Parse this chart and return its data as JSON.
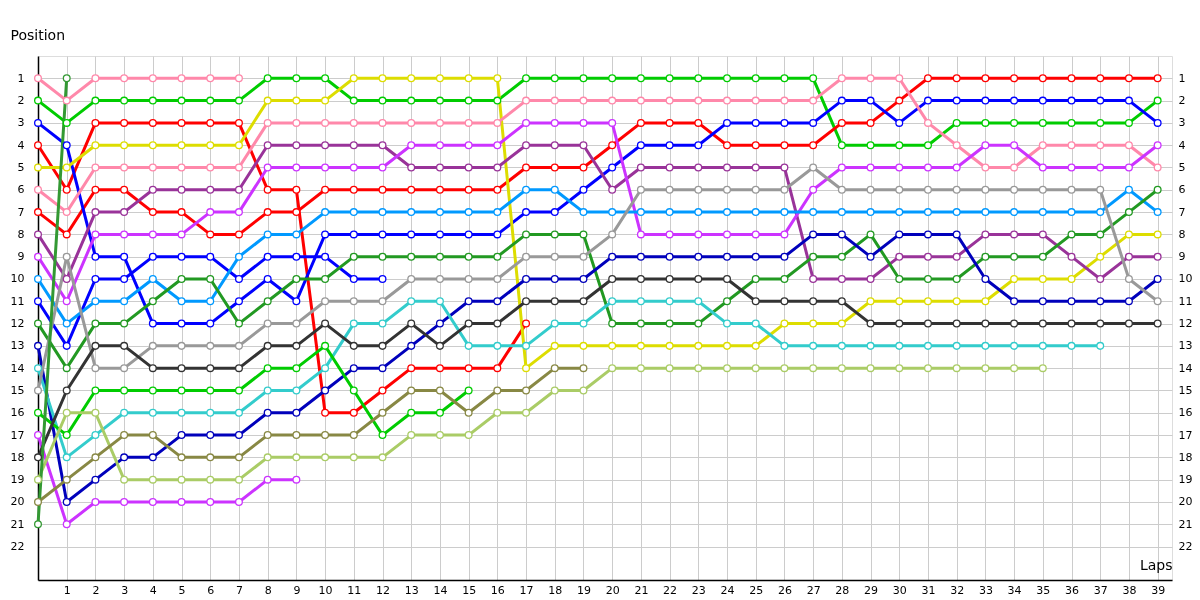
{
  "chart_data": {
    "type": "line",
    "xlabel": "Laps",
    "ylabel": "Position",
    "x": [
      0,
      1,
      2,
      3,
      4,
      5,
      6,
      7,
      8,
      9,
      10,
      11,
      12,
      13,
      14,
      15,
      16,
      17,
      18,
      19,
      20,
      21,
      22,
      23,
      24,
      25,
      26,
      27,
      28,
      29,
      30,
      31,
      32,
      33,
      34,
      35,
      36,
      37,
      38,
      39
    ],
    "xlim": [
      0,
      39.5
    ],
    "xticks": [
      1,
      2,
      3,
      4,
      5,
      6,
      7,
      8,
      9,
      10,
      11,
      12,
      13,
      14,
      15,
      16,
      17,
      18,
      19,
      20,
      21,
      22,
      23,
      24,
      25,
      26,
      27,
      28,
      29,
      30,
      31,
      32,
      33,
      34,
      35,
      36,
      37,
      38,
      39
    ],
    "ylim": [
      23.5,
      0
    ],
    "yticks": [
      1,
      2,
      3,
      4,
      5,
      6,
      7,
      8,
      9,
      10,
      11,
      12,
      13,
      14,
      15,
      16,
      17,
      18,
      19,
      20,
      21,
      22
    ],
    "y2lim": [
      23.5,
      0
    ],
    "y2ticks": [
      1,
      2,
      3,
      4,
      5,
      6,
      7,
      8,
      9,
      10,
      11,
      12,
      13,
      14,
      15,
      16,
      17,
      18,
      19,
      20,
      21,
      22
    ],
    "grid": true,
    "legend": false,
    "marker": "circle",
    "line_style": "solid",
    "series": [
      {
        "color": "#ff88aa",
        "values": [
          1,
          2,
          1,
          1,
          1,
          1,
          1,
          1,
          null,
          null,
          null,
          null,
          null,
          null,
          null,
          null,
          null,
          null,
          null,
          null,
          null,
          null,
          null,
          null,
          null,
          null,
          null,
          null,
          null,
          null,
          null,
          null,
          null,
          null,
          null,
          null,
          null,
          null,
          null,
          null
        ]
      },
      {
        "color": "#00cc00",
        "values": [
          2,
          3,
          2,
          2,
          2,
          2,
          2,
          2,
          1,
          1,
          1,
          2,
          2,
          2,
          2,
          2,
          2,
          1,
          1,
          1,
          1,
          1,
          1,
          1,
          1,
          1,
          1,
          1,
          4,
          4,
          4,
          4,
          3,
          3,
          3,
          3,
          3,
          3,
          3,
          2
        ]
      },
      {
        "color": "#ff0000",
        "values": [
          4,
          6,
          3,
          3,
          3,
          3,
          3,
          3,
          6,
          6,
          16,
          16,
          15,
          14,
          14,
          14,
          14,
          12,
          null,
          null,
          null,
          null,
          null,
          null,
          null,
          null,
          null,
          null,
          null,
          null,
          null,
          null,
          null,
          null,
          null,
          null,
          null,
          null,
          null,
          null
        ]
      },
      {
        "color": "#ff0000",
        "values": [
          7,
          8,
          6,
          6,
          7,
          7,
          8,
          8,
          7,
          7,
          6,
          6,
          6,
          6,
          6,
          6,
          6,
          5,
          5,
          5,
          4,
          3,
          3,
          3,
          4,
          4,
          4,
          4,
          3,
          3,
          2,
          1,
          1,
          1,
          1,
          1,
          1,
          1,
          1,
          1
        ]
      },
      {
        "color": "#0000ff",
        "values": [
          11,
          13,
          10,
          10,
          9,
          9,
          9,
          10,
          9,
          9,
          9,
          10,
          10,
          null,
          null,
          null,
          null,
          null,
          null,
          null,
          null,
          null,
          null,
          null,
          null,
          null,
          null,
          null,
          null,
          null,
          null,
          null,
          null,
          null,
          null,
          null,
          null,
          null,
          null,
          null
        ]
      },
      {
        "color": "#0000ff",
        "values": [
          3,
          4,
          9,
          9,
          12,
          12,
          12,
          11,
          10,
          11,
          8,
          8,
          8,
          8,
          8,
          8,
          8,
          7,
          7,
          6,
          5,
          4,
          4,
          4,
          3,
          3,
          3,
          3,
          2,
          2,
          3,
          2,
          2,
          2,
          2,
          2,
          2,
          2,
          2,
          3
        ]
      },
      {
        "color": "#dddd00",
        "values": [
          5,
          5,
          4,
          4,
          4,
          4,
          4,
          4,
          2,
          2,
          2,
          1,
          1,
          1,
          1,
          1,
          1,
          14,
          13,
          13,
          13,
          13,
          13,
          13,
          13,
          13,
          12,
          12,
          12,
          11,
          11,
          11,
          11,
          11,
          10,
          10,
          10,
          9,
          8,
          8
        ]
      },
      {
        "color": "#ff88aa",
        "values": [
          6,
          7,
          5,
          5,
          5,
          5,
          5,
          5,
          3,
          3,
          3,
          3,
          3,
          3,
          3,
          3,
          3,
          2,
          2,
          2,
          2,
          2,
          2,
          2,
          2,
          2,
          2,
          2,
          1,
          1,
          1,
          3,
          4,
          5,
          5,
          4,
          4,
          4,
          4,
          5
        ]
      },
      {
        "color": "#993399",
        "values": [
          8,
          10,
          7,
          7,
          6,
          6,
          6,
          6,
          4,
          4,
          4,
          4,
          4,
          5,
          5,
          5,
          5,
          4,
          4,
          4,
          6,
          5,
          5,
          5,
          5,
          5,
          5,
          10,
          10,
          10,
          9,
          9,
          9,
          8,
          8,
          8,
          9,
          10,
          9,
          9
        ]
      },
      {
        "color": "#cc33ff",
        "values": [
          9,
          11,
          8,
          8,
          8,
          8,
          7,
          7,
          5,
          5,
          5,
          5,
          5,
          4,
          4,
          4,
          4,
          3,
          3,
          3,
          3,
          8,
          8,
          8,
          8,
          8,
          8,
          6,
          5,
          5,
          5,
          5,
          5,
          4,
          4,
          5,
          5,
          5,
          5,
          4
        ]
      },
      {
        "color": "#0099ff",
        "values": [
          10,
          12,
          11,
          11,
          10,
          11,
          11,
          9,
          8,
          8,
          7,
          7,
          7,
          7,
          7,
          7,
          7,
          6,
          6,
          7,
          7,
          7,
          7,
          7,
          7,
          7,
          7,
          7,
          7,
          7,
          7,
          7,
          7,
          7,
          7,
          7,
          7,
          7,
          6,
          7
        ]
      },
      {
        "color": "#229922",
        "values": [
          12,
          14,
          12,
          12,
          11,
          10,
          10,
          12,
          11,
          10,
          10,
          9,
          9,
          9,
          9,
          9,
          9,
          8,
          8,
          8,
          12,
          12,
          12,
          12,
          11,
          10,
          10,
          9,
          9,
          8,
          10,
          10,
          10,
          9,
          9,
          9,
          8,
          8,
          7,
          6
        ]
      },
      {
        "color": "#0000bb",
        "values": [
          13,
          20,
          19,
          18,
          18,
          17,
          17,
          17,
          16,
          16,
          15,
          14,
          14,
          13,
          12,
          11,
          11,
          10,
          10,
          10,
          9,
          9,
          9,
          9,
          9,
          9,
          9,
          8,
          8,
          9,
          8,
          8,
          8,
          10,
          11,
          11,
          11,
          11,
          11,
          10
        ]
      },
      {
        "color": "#33cccc",
        "values": [
          14,
          18,
          17,
          16,
          16,
          16,
          16,
          16,
          15,
          15,
          14,
          12,
          12,
          11,
          11,
          13,
          13,
          13,
          12,
          12,
          11,
          11,
          11,
          11,
          12,
          12,
          13,
          13,
          13,
          13,
          13,
          13,
          13,
          13,
          13,
          13,
          13,
          13,
          null,
          null
        ]
      },
      {
        "color": "#999999",
        "values": [
          15,
          9,
          14,
          14,
          13,
          13,
          13,
          13,
          12,
          12,
          11,
          11,
          11,
          10,
          10,
          10,
          10,
          9,
          9,
          9,
          8,
          6,
          6,
          6,
          6,
          6,
          6,
          5,
          6,
          6,
          6,
          6,
          6,
          6,
          6,
          6,
          6,
          6,
          10,
          11
        ]
      },
      {
        "color": "#00cc00",
        "values": [
          16,
          17,
          15,
          15,
          15,
          15,
          15,
          15,
          14,
          14,
          13,
          15,
          17,
          16,
          16,
          15,
          null,
          null,
          null,
          null,
          null,
          null,
          null,
          null,
          null,
          null,
          null,
          null,
          null,
          null,
          null,
          null,
          null,
          null,
          null,
          null,
          null,
          null,
          null,
          null
        ]
      },
      {
        "color": "#cc33ff",
        "values": [
          17,
          21,
          20,
          20,
          20,
          20,
          20,
          20,
          19,
          19,
          null,
          null,
          null,
          null,
          null,
          null,
          null,
          null,
          null,
          null,
          null,
          null,
          null,
          null,
          null,
          null,
          null,
          null,
          null,
          null,
          null,
          null,
          null,
          null,
          null,
          null,
          null,
          null,
          null,
          null
        ]
      },
      {
        "color": "#333333",
        "values": [
          18,
          15,
          13,
          13,
          14,
          14,
          14,
          14,
          13,
          13,
          12,
          13,
          13,
          12,
          13,
          12,
          12,
          11,
          11,
          11,
          10,
          10,
          10,
          10,
          10,
          11,
          11,
          11,
          11,
          12,
          12,
          12,
          12,
          12,
          12,
          12,
          12,
          12,
          12,
          12
        ]
      },
      {
        "color": "#aacc66",
        "values": [
          19,
          16,
          16,
          19,
          19,
          19,
          19,
          19,
          18,
          18,
          18,
          18,
          18,
          17,
          17,
          17,
          16,
          16,
          15,
          15,
          14,
          14,
          14,
          14,
          14,
          14,
          14,
          14,
          14,
          14,
          14,
          14,
          14,
          14,
          14,
          14,
          null,
          null,
          null,
          null
        ]
      },
      {
        "color": "#888844",
        "values": [
          20,
          19,
          18,
          17,
          17,
          18,
          18,
          18,
          17,
          17,
          17,
          17,
          16,
          15,
          15,
          16,
          15,
          15,
          14,
          14,
          null,
          null,
          null,
          null,
          null,
          null,
          null,
          null,
          null,
          null,
          null,
          null,
          null,
          null,
          null,
          null,
          null,
          null,
          null,
          null
        ]
      },
      {
        "color": "#339933",
        "values": [
          21,
          1,
          null,
          null,
          null,
          null,
          null,
          null,
          null,
          null,
          null,
          null,
          null,
          null,
          null,
          null,
          null,
          null,
          null,
          null,
          null,
          null,
          null,
          null,
          null,
          null,
          null,
          null,
          null,
          null,
          null,
          null,
          null,
          null,
          null,
          null,
          null,
          null,
          null,
          null
        ]
      }
    ]
  }
}
